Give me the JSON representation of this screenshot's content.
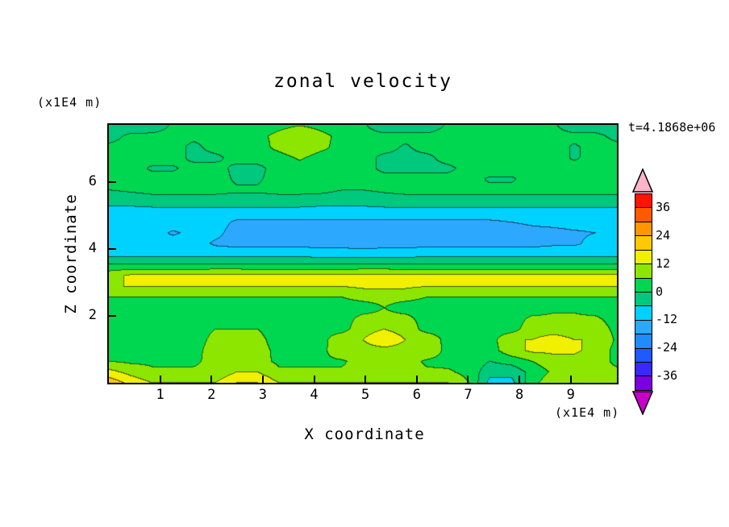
{
  "title": "zonal velocity",
  "timestamp": "t=4.1868e+06",
  "axes": {
    "x": {
      "label": "X coordinate",
      "units": "(x1E4 m)",
      "ticks": [
        1,
        2,
        3,
        4,
        5,
        6,
        7,
        8,
        9
      ],
      "range": [
        0,
        9.9
      ]
    },
    "z": {
      "label": "Z coordinate",
      "units": "(x1E4 m)",
      "ticks": [
        2,
        4,
        6
      ],
      "range": [
        0,
        7.7
      ]
    }
  },
  "colorbar": {
    "labels": [
      36,
      24,
      12,
      0,
      -12,
      -24,
      -36
    ],
    "levels": [
      -42,
      -36,
      -30,
      -24,
      -18,
      -12,
      -6,
      0,
      6,
      12,
      18,
      24,
      30,
      36,
      42
    ],
    "segment_colors_bottom_to_top": [
      "#7A00E0",
      "#3A28FF",
      "#1E5AFF",
      "#1E8CFF",
      "#2DA8FF",
      "#00D2FF",
      "#00C87D",
      "#00D750",
      "#8CE600",
      "#F0F000",
      "#FFC800",
      "#FF9600",
      "#FF5A00",
      "#FF1400"
    ],
    "arrow_bottom_color": "#C800C8",
    "arrow_top_color": "#FFB4C8"
  },
  "chart_data": {
    "type": "heatmap",
    "title": "zonal velocity",
    "xlabel": "X coordinate (x1E4 m)",
    "ylabel": "Z coordinate (x1E4 m)",
    "x_range": [
      0,
      9.9
    ],
    "z_range": [
      0,
      7.7
    ],
    "contour_interval": 6,
    "value_range": [
      -42,
      42
    ],
    "grid_order": "rows bottom to top, columns left to right",
    "values": [
      [
        22,
        16,
        12,
        12,
        12,
        12,
        18,
        18,
        12,
        12,
        12,
        12,
        12,
        12,
        12,
        12,
        12,
        6,
        -8,
        -8,
        4,
        10,
        10,
        10,
        10
      ],
      [
        14,
        10,
        7,
        7,
        7,
        7,
        12,
        12,
        7,
        7,
        7,
        7,
        8,
        8,
        8,
        7,
        7,
        4,
        -4,
        -4,
        2,
        7,
        7,
        7,
        7
      ],
      [
        6,
        5,
        5,
        5,
        5,
        8,
        8,
        8,
        5,
        5,
        5,
        5,
        9,
        9,
        9,
        5,
        4,
        4,
        0,
        2,
        6,
        10,
        10,
        8,
        5
      ],
      [
        4,
        4,
        4,
        4,
        4,
        9,
        10,
        9,
        4,
        4,
        4,
        11,
        11,
        11,
        11,
        11,
        4,
        4,
        3,
        10,
        13,
        13,
        13,
        10,
        4
      ],
      [
        3,
        3,
        3,
        3,
        3,
        8,
        8,
        8,
        3,
        3,
        3,
        12,
        12,
        14,
        12,
        12,
        3,
        3,
        3,
        12,
        12,
        14,
        12,
        12,
        5
      ],
      [
        3,
        3,
        3,
        3,
        3,
        6,
        6,
        6,
        3,
        3,
        3,
        3,
        11,
        12,
        11,
        3,
        3,
        3,
        3,
        3,
        10,
        10,
        10,
        10,
        4
      ],
      [
        3,
        3,
        3,
        3,
        3,
        3,
        3,
        3,
        3,
        3,
        3,
        3,
        8,
        8,
        8,
        3,
        3,
        3,
        3,
        3,
        7,
        7,
        7,
        7,
        3
      ],
      [
        3,
        3,
        3,
        3,
        3,
        3,
        3,
        3,
        3,
        3,
        3,
        3,
        3,
        6,
        3,
        3,
        3,
        3,
        3,
        3,
        3,
        5,
        5,
        3,
        3
      ],
      [
        6,
        6,
        6,
        6,
        6,
        6,
        6,
        6,
        6,
        6,
        6,
        6,
        8,
        8,
        8,
        6,
        6,
        6,
        6,
        6,
        6,
        6,
        6,
        6,
        6
      ],
      [
        12,
        12,
        12,
        12,
        12,
        12,
        12,
        12,
        12,
        12,
        12,
        12,
        13,
        13,
        13,
        12,
        12,
        12,
        12,
        12,
        12,
        12,
        12,
        12,
        12
      ],
      [
        10,
        13,
        13,
        13,
        13,
        14,
        14,
        13,
        13,
        13,
        13,
        13,
        14,
        14,
        13,
        13,
        13,
        13,
        13,
        13,
        13,
        13,
        13,
        13,
        13
      ],
      [
        1,
        1,
        1,
        1,
        1,
        1,
        1,
        1,
        1,
        1,
        1,
        1,
        1,
        1,
        1,
        1,
        1,
        1,
        1,
        1,
        1,
        1,
        1,
        1,
        1
      ],
      [
        -8,
        -8,
        -8,
        -8,
        -8,
        -8,
        -8,
        -8,
        -8,
        -8,
        -9,
        -9,
        -9,
        -9,
        -9,
        -8,
        -8,
        -8,
        -8,
        -8,
        -8,
        -8,
        -8,
        -8,
        -8
      ],
      [
        -9,
        -9,
        -9,
        -9,
        -9,
        -13,
        -14,
        -14,
        -14,
        -14,
        -14,
        -14,
        -15,
        -14,
        -14,
        -14,
        -14,
        -14,
        -14,
        -14,
        -14,
        -13,
        -13,
        -10,
        -10
      ],
      [
        -9,
        -9,
        -9,
        -13,
        -10,
        -10,
        -15,
        -15,
        -16,
        -15,
        -15,
        -15,
        -16,
        -16,
        -15,
        -15,
        -15,
        -15,
        -16,
        -15,
        -14,
        -14,
        -13,
        -12,
        -10
      ],
      [
        -8,
        -8,
        -8,
        -8,
        -8,
        -9,
        -13,
        -13,
        -13,
        -13,
        -13,
        -13,
        -13,
        -13,
        -13,
        -13,
        -13,
        -13,
        -13,
        -12,
        -11,
        -10,
        -9,
        -9,
        -9
      ],
      [
        -7,
        -8,
        -8,
        -8,
        -8,
        -8,
        -8,
        -8,
        -8,
        -8,
        -8,
        -8,
        -8,
        -8,
        -8,
        -8,
        -8,
        -8,
        -8,
        -8,
        -8,
        -8,
        -8,
        -8,
        -8
      ],
      [
        -5,
        -4,
        -3,
        -3,
        -3,
        -3,
        -3,
        -3,
        -3,
        -3,
        -4,
        -4,
        -4,
        -3,
        -3,
        -3,
        -3,
        -3,
        -3,
        -3,
        -3,
        -3,
        -3,
        -3,
        -3
      ],
      [
        0,
        1,
        2,
        2,
        2,
        2,
        1,
        1,
        2,
        2,
        2,
        0,
        0,
        1,
        2,
        2,
        2,
        2,
        2,
        2,
        2,
        2,
        2,
        2,
        2
      ],
      [
        2,
        3,
        3,
        3,
        3,
        3,
        -1,
        -1,
        3,
        3,
        3,
        3,
        3,
        3,
        3,
        3,
        3,
        3,
        -1,
        -1,
        3,
        3,
        3,
        3,
        3
      ],
      [
        3,
        3,
        -1,
        -1,
        3,
        3,
        -2,
        -2,
        3,
        3,
        3,
        3,
        3,
        -2,
        -2,
        -2,
        -2,
        3,
        3,
        3,
        3,
        3,
        3,
        3,
        3
      ],
      [
        2,
        3,
        3,
        3,
        -2,
        -2,
        3,
        3,
        3,
        7,
        3,
        3,
        3,
        -2,
        -2,
        -2,
        3,
        3,
        3,
        3,
        3,
        3,
        -1,
        3,
        3
      ],
      [
        2,
        2,
        3,
        3,
        -2,
        3,
        3,
        3,
        8,
        12,
        8,
        3,
        3,
        3,
        -1,
        3,
        3,
        3,
        3,
        3,
        3,
        3,
        -1,
        3,
        2
      ],
      [
        -3,
        2,
        2,
        2,
        2,
        2,
        2,
        4,
        8,
        12,
        8,
        4,
        2,
        2,
        2,
        2,
        2,
        2,
        2,
        2,
        2,
        2,
        2,
        2,
        -2
      ],
      [
        -5,
        -5,
        -4,
        1,
        1,
        1,
        1,
        2,
        4,
        6,
        4,
        2,
        1,
        -4,
        -4,
        -4,
        1,
        1,
        1,
        1,
        1,
        1,
        -4,
        -4,
        -4
      ]
    ]
  }
}
